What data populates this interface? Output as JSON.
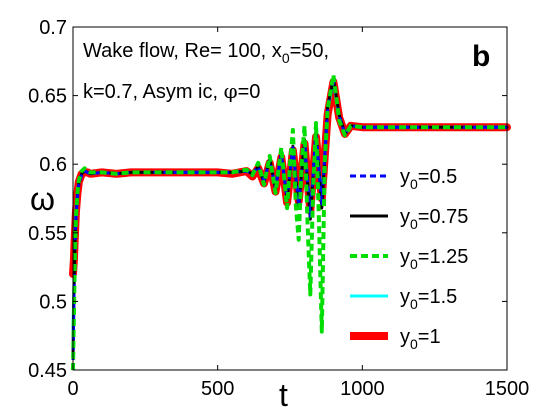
{
  "chart_data": {
    "type": "line",
    "annotation": {
      "line1_parts": [
        "Wake flow, Re= 100, x",
        "0",
        "=50,"
      ],
      "line2_parts": [
        "k=0.7, Asym ic, ",
        "φ",
        "=0"
      ]
    },
    "panel_label": "b",
    "xlabel": "t",
    "ylabel": "ω",
    "xlim": [
      0,
      1500
    ],
    "ylim": [
      0.45,
      0.7
    ],
    "xticks": [
      "0",
      "500",
      "1000",
      "1500"
    ],
    "xtick_values": [
      0,
      500,
      1000,
      1500
    ],
    "yticks": [
      "0.45",
      "0.5",
      "0.55",
      "0.6",
      "0.65",
      "0.7"
    ],
    "ytick_values": [
      0.45,
      0.5,
      0.55,
      0.6,
      0.65,
      0.7
    ],
    "grid": false,
    "legend_position": "right",
    "series": [
      {
        "name": "0.5",
        "name_prefix": "y",
        "name_sub": "0",
        "name_suffix": "=0.5",
        "color": "#0000ff",
        "style": "dashed",
        "width": 3,
        "x": [
          0,
          3,
          6,
          10,
          15,
          20,
          30,
          40,
          50,
          60,
          100,
          150,
          200,
          300,
          400,
          500,
          550,
          600,
          620,
          640,
          660,
          680,
          700,
          720,
          740,
          760,
          780,
          800,
          820,
          840,
          860,
          880,
          900,
          920,
          940,
          960,
          1000,
          1100,
          1200,
          1300,
          1400,
          1500
        ],
        "y": [
          0.45,
          0.5,
          0.53,
          0.56,
          0.575,
          0.585,
          0.592,
          0.595,
          0.594,
          0.593,
          0.594,
          0.593,
          0.594,
          0.594,
          0.594,
          0.594,
          0.594,
          0.595,
          0.593,
          0.598,
          0.588,
          0.603,
          0.583,
          0.607,
          0.575,
          0.612,
          0.57,
          0.617,
          0.562,
          0.624,
          0.57,
          0.64,
          0.66,
          0.635,
          0.622,
          0.628,
          0.627,
          0.627,
          0.627,
          0.627,
          0.627,
          0.627
        ]
      },
      {
        "name": "0.75",
        "name_prefix": "y",
        "name_sub": "0",
        "name_suffix": "=0.75",
        "color": "#000000",
        "style": "solid",
        "width": 3,
        "x": [
          0,
          3,
          6,
          10,
          15,
          20,
          30,
          40,
          50,
          60,
          100,
          150,
          200,
          300,
          400,
          500,
          550,
          600,
          620,
          640,
          660,
          680,
          700,
          720,
          740,
          760,
          780,
          800,
          820,
          840,
          860,
          880,
          900,
          920,
          940,
          960,
          1000,
          1100,
          1200,
          1300,
          1400,
          1500
        ],
        "y": [
          0.46,
          0.505,
          0.535,
          0.562,
          0.577,
          0.586,
          0.593,
          0.595,
          0.594,
          0.593,
          0.594,
          0.593,
          0.594,
          0.594,
          0.594,
          0.594,
          0.594,
          0.595,
          0.593,
          0.598,
          0.587,
          0.604,
          0.582,
          0.608,
          0.574,
          0.613,
          0.568,
          0.618,
          0.56,
          0.625,
          0.568,
          0.642,
          0.662,
          0.636,
          0.622,
          0.628,
          0.627,
          0.627,
          0.627,
          0.627,
          0.627,
          0.627
        ]
      },
      {
        "name": "1.25",
        "name_prefix": "y",
        "name_sub": "0",
        "name_suffix": "=1.25",
        "color": "#00dd00",
        "style": "dashed",
        "width": 4,
        "x": [
          0,
          3,
          6,
          10,
          15,
          20,
          30,
          40,
          50,
          60,
          100,
          150,
          200,
          300,
          400,
          500,
          550,
          600,
          620,
          640,
          660,
          680,
          700,
          720,
          740,
          750,
          760,
          770,
          780,
          790,
          800,
          810,
          820,
          830,
          840,
          850,
          860,
          870,
          880,
          900,
          920,
          940,
          960,
          1000,
          1100,
          1200,
          1300,
          1400,
          1500
        ],
        "y": [
          0.45,
          0.49,
          0.525,
          0.56,
          0.578,
          0.588,
          0.595,
          0.597,
          0.595,
          0.594,
          0.594,
          0.593,
          0.594,
          0.594,
          0.594,
          0.594,
          0.594,
          0.596,
          0.592,
          0.601,
          0.585,
          0.606,
          0.579,
          0.612,
          0.568,
          0.6,
          0.625,
          0.57,
          0.545,
          0.6,
          0.628,
          0.56,
          0.505,
          0.58,
          0.63,
          0.56,
          0.478,
          0.6,
          0.64,
          0.665,
          0.632,
          0.621,
          0.628,
          0.627,
          0.627,
          0.627,
          0.627,
          0.627,
          0.627
        ]
      },
      {
        "name": "1.5",
        "name_prefix": "y",
        "name_sub": "0",
        "name_suffix": "=1.5",
        "color": "#00ffff",
        "style": "solid",
        "width": 3,
        "x": [
          0,
          3,
          6,
          10,
          15,
          20,
          30,
          40,
          50,
          60,
          100,
          150,
          200,
          300,
          400,
          500,
          550,
          600,
          620,
          640,
          660,
          680,
          700,
          720,
          740,
          760,
          780,
          800,
          820,
          840,
          860,
          880,
          900,
          920,
          940,
          960,
          1000,
          1100,
          1200,
          1300,
          1400,
          1500
        ],
        "y": [
          0.48,
          0.51,
          0.54,
          0.565,
          0.578,
          0.587,
          0.593,
          0.595,
          0.594,
          0.593,
          0.594,
          0.593,
          0.594,
          0.594,
          0.594,
          0.594,
          0.594,
          0.595,
          0.593,
          0.598,
          0.588,
          0.603,
          0.583,
          0.607,
          0.575,
          0.612,
          0.57,
          0.617,
          0.563,
          0.623,
          0.572,
          0.64,
          0.66,
          0.635,
          0.622,
          0.628,
          0.627,
          0.627,
          0.627,
          0.627,
          0.627,
          0.627
        ]
      },
      {
        "name": "1",
        "name_prefix": "y",
        "name_sub": "0",
        "name_suffix": "=1",
        "color": "#ff0000",
        "style": "solid",
        "width": 8,
        "x": [
          0,
          3,
          6,
          10,
          15,
          20,
          30,
          40,
          50,
          60,
          100,
          150,
          200,
          300,
          400,
          500,
          550,
          600,
          620,
          640,
          660,
          680,
          700,
          720,
          740,
          760,
          780,
          800,
          820,
          840,
          860,
          880,
          900,
          920,
          940,
          960,
          1000,
          1100,
          1200,
          1300,
          1400,
          1500
        ],
        "y": [
          0.52,
          0.53,
          0.545,
          0.565,
          0.578,
          0.587,
          0.593,
          0.594,
          0.594,
          0.593,
          0.594,
          0.593,
          0.594,
          0.594,
          0.594,
          0.594,
          0.593,
          0.595,
          0.591,
          0.597,
          0.586,
          0.601,
          0.58,
          0.605,
          0.572,
          0.61,
          0.573,
          0.615,
          0.566,
          0.62,
          0.575,
          0.636,
          0.66,
          0.634,
          0.622,
          0.628,
          0.627,
          0.627,
          0.627,
          0.627,
          0.627,
          0.627
        ]
      }
    ]
  }
}
